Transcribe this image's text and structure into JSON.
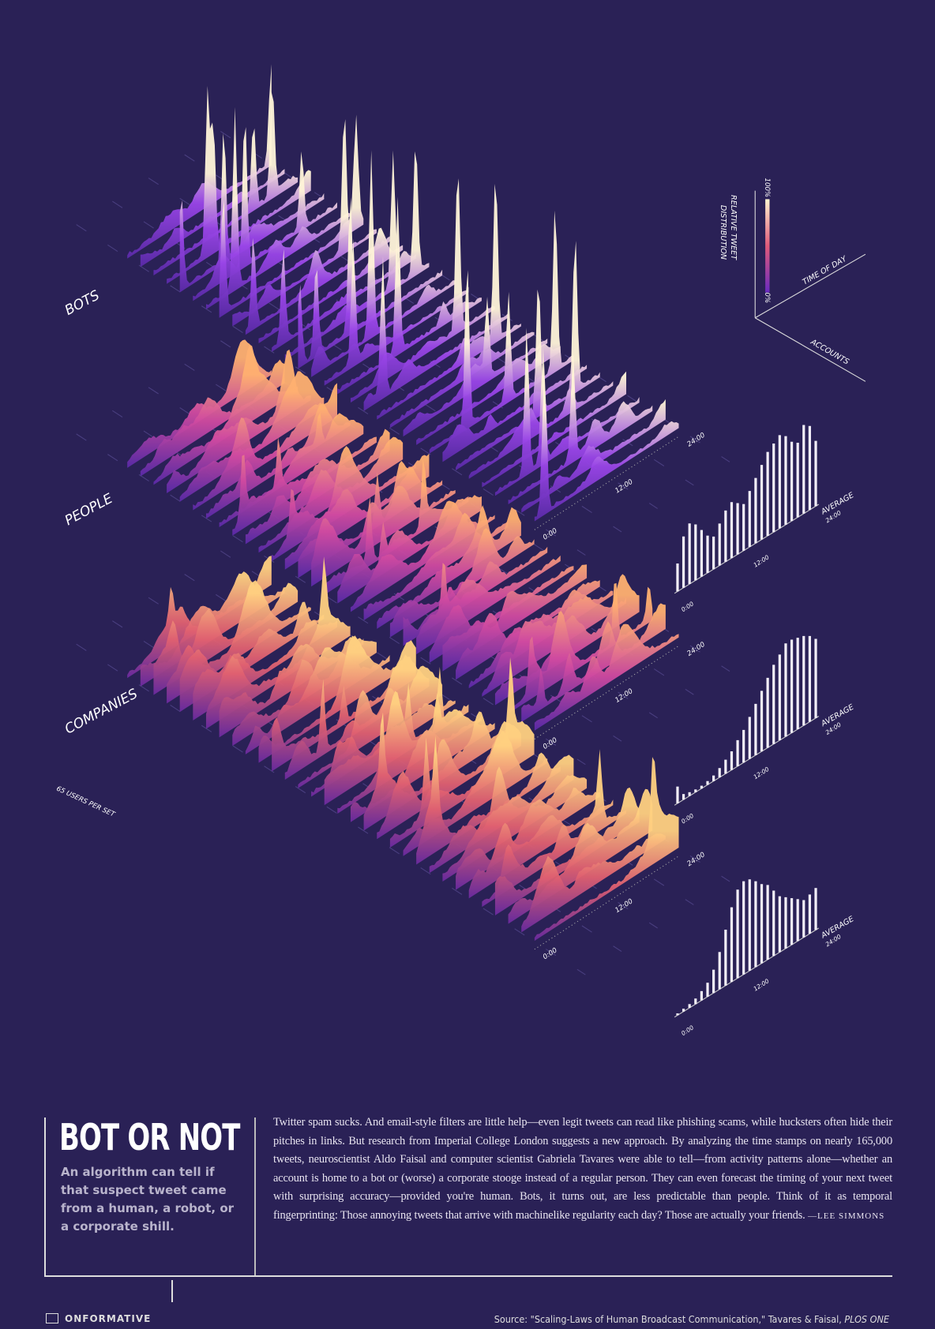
{
  "groups": [
    {
      "label": "BOTS",
      "ticks": [
        "0:00",
        "12:00",
        "24:00"
      ],
      "average": {
        "label": "AVERAGE",
        "ticks": [
          "0:00",
          "12:00",
          "24:00"
        ],
        "values": [
          30,
          55,
          65,
          60,
          50,
          40,
          35,
          45,
          55,
          60,
          55,
          50,
          60,
          70,
          80,
          90,
          95,
          100,
          95,
          85,
          80,
          95,
          90,
          70
        ]
      }
    },
    {
      "label": "PEOPLE",
      "ticks": [
        "0:00",
        "12:00",
        "24:00"
      ],
      "average": {
        "label": "AVERAGE",
        "ticks": [
          "0:00",
          "12:00",
          "24:00"
        ],
        "values": [
          18,
          6,
          4,
          3,
          3,
          4,
          6,
          10,
          15,
          20,
          28,
          35,
          45,
          55,
          65,
          75,
          85,
          92,
          100,
          100,
          98,
          96,
          92,
          85
        ]
      }
    },
    {
      "label": "COMPANIES",
      "ticks": [
        "0:00",
        "12:00",
        "24:00"
      ],
      "average": {
        "label": "AVERAGE",
        "ticks": [
          "0:00",
          "12:00",
          "24:00"
        ],
        "values": [
          2,
          3,
          4,
          6,
          10,
          15,
          25,
          40,
          60,
          80,
          95,
          100,
          98,
          92,
          85,
          80,
          70,
          60,
          55,
          50,
          45,
          40,
          42,
          45
        ]
      }
    }
  ],
  "users_per_set": "65 USERS PER SET",
  "legend": {
    "axis_title": [
      "RELATIVE TWEET",
      "DISTRIBUTION"
    ],
    "max": "100%",
    "min": "0%",
    "time": "TIME OF DAY",
    "accounts": "ACCOUNTS"
  },
  "article": {
    "title": "BOT OR NOT",
    "subtitle": "An algorithm can tell if that suspect tweet came from a human, a robot, or a corporate shill.",
    "body": "Twitter spam sucks. And email-style filters are little help—even legit tweets can read like phishing scams, while hucksters often hide their pitches in links. But research from Imperial College London suggests a new approach. By analyzing the time stamps on nearly 165,000 tweets, neuroscientist Aldo Faisal and computer scientist Gabriela Tavares were able to tell—from activity patterns alone—whether an account is home to a bot or (worse) a corporate stooge instead of a regular person. They can even forecast the timing of your next tweet with surprising accuracy—provided you're human. Bots, it turns out, are less predictable than people. Think of it as temporal fingerprinting: Those annoying tweets that arrive with machinelike regularity each day? Those are actually your friends.",
    "byline": "—LEE SIMMONS"
  },
  "footer": {
    "logo": "ONFORMATIVE",
    "source": "Source: \"Scaling-Laws of Human Broadcast Communication,\" Tavares & Faisal,",
    "journal": "PLOS ONE"
  }
}
